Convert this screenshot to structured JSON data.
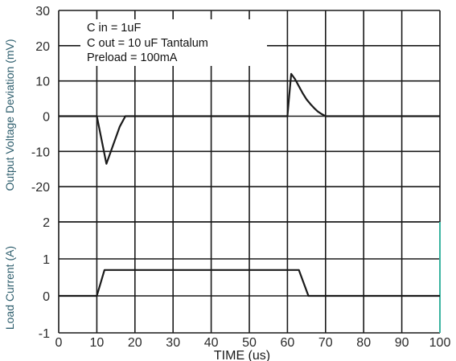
{
  "chart_data": [
    {
      "type": "line",
      "panel": "top",
      "ylabel": "Output Voltage Deviation (mV)",
      "ylim": [
        -30,
        30
      ],
      "yticks": [
        "30",
        "20",
        "10",
        "0",
        "-10",
        "-20"
      ],
      "xlim": [
        0,
        100
      ],
      "grid": true,
      "annotations": [
        "C in = 1uF",
        "C out = 10 uF  Tantalum",
        "Preload = 100mA"
      ],
      "series": [
        {
          "x": [
            0,
            10,
            10.2,
            12.5,
            16,
            17.5,
            60,
            60.4,
            61,
            62,
            63,
            64,
            65,
            66,
            67,
            68,
            69,
            70,
            100
          ],
          "y": [
            0,
            0,
            -1,
            -13.5,
            -3,
            0,
            0,
            5,
            12,
            10.5,
            8.5,
            6.5,
            4.8,
            3.5,
            2.3,
            1.3,
            0.6,
            0,
            0
          ]
        }
      ]
    },
    {
      "type": "line",
      "panel": "bottom",
      "ylabel": "Load Current (A)",
      "ylim": [
        -1,
        2
      ],
      "yticks": [
        "2",
        "1",
        "0",
        "-1"
      ],
      "xlim": [
        0,
        100
      ],
      "xticks": [
        "0",
        "10",
        "20",
        "30",
        "40",
        "50",
        "60",
        "70",
        "80",
        "90",
        "100"
      ],
      "xlabel": "TIME (us)",
      "grid": true,
      "series": [
        {
          "x": [
            0,
            10,
            12,
            63,
            65.5,
            100
          ],
          "y": [
            0,
            0,
            0.7,
            0.7,
            0,
            0
          ]
        }
      ]
    }
  ],
  "colors": {
    "grid": "#1a1a1a",
    "axis_text": "#2a2a2a",
    "ylabel_text": "#2f5f6e",
    "trace": "#1a1a1a",
    "accent_edge": "#3bb3a0"
  }
}
